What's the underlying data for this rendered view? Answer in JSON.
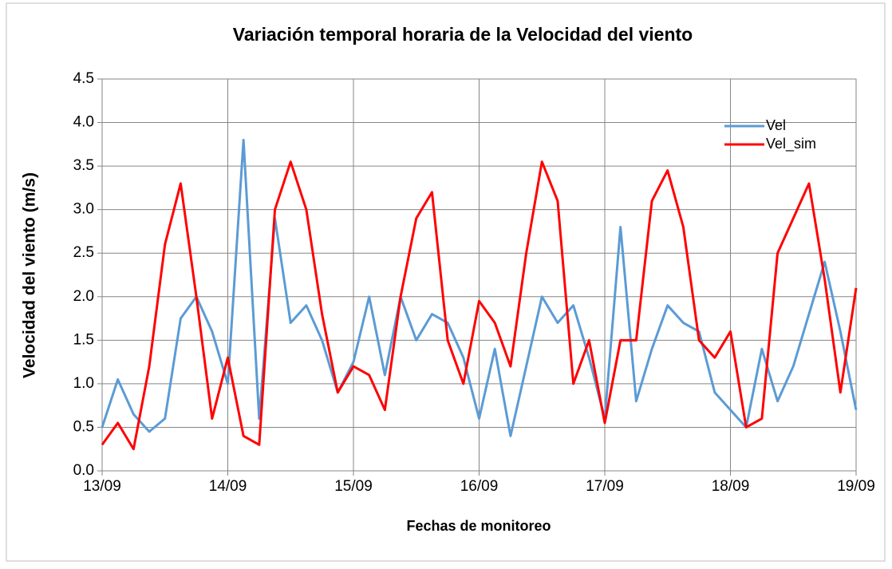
{
  "chart_data": {
    "type": "line",
    "title": "Variación temporal horaria de la Velocidad del viento",
    "x_label": "Fechas de monitoreo",
    "y_label": "Velocidad del viento (m/s)",
    "x": [
      0,
      3,
      6,
      9,
      12,
      15,
      18,
      21,
      24,
      27,
      30,
      33,
      36,
      39,
      42,
      45,
      48,
      51,
      54,
      57,
      60,
      63,
      66,
      69,
      72,
      75,
      78,
      81,
      84,
      87,
      90,
      93,
      96,
      99,
      102,
      105,
      108,
      111,
      114,
      117,
      120,
      123,
      126,
      129,
      132,
      135,
      138,
      141,
      144
    ],
    "series": [
      {
        "name": "Vel",
        "color": "#5b9bd5",
        "values": [
          0.5,
          1.05,
          0.65,
          0.45,
          0.6,
          1.75,
          2.0,
          1.6,
          1.0,
          3.8,
          0.6,
          2.9,
          1.7,
          1.9,
          1.5,
          0.9,
          1.25,
          2.0,
          1.1,
          2.0,
          1.5,
          1.8,
          1.7,
          1.3,
          0.6,
          1.4,
          0.4,
          1.2,
          2.0,
          1.7,
          1.9,
          1.3,
          0.6,
          2.8,
          0.8,
          1.4,
          1.9,
          1.7,
          1.6,
          0.9,
          0.7,
          0.5,
          1.4,
          0.8,
          1.2,
          1.8,
          2.4,
          1.6,
          0.7
        ]
      },
      {
        "name": "Vel_sim",
        "color": "#ff0000",
        "values": [
          0.3,
          0.55,
          0.25,
          1.2,
          2.6,
          3.3,
          2.0,
          0.6,
          1.3,
          0.4,
          0.3,
          3.0,
          3.55,
          3.0,
          1.8,
          0.9,
          1.2,
          1.1,
          0.7,
          2.0,
          2.9,
          3.2,
          1.5,
          1.0,
          1.95,
          1.7,
          1.2,
          2.5,
          3.55,
          3.1,
          1.0,
          1.5,
          0.55,
          1.5,
          1.5,
          3.1,
          3.45,
          2.8,
          1.5,
          1.3,
          1.6,
          0.5,
          0.6,
          2.5,
          2.9,
          3.3,
          2.2,
          0.9,
          2.1
        ]
      }
    ],
    "xlim": [
      0,
      144
    ],
    "xticks": [
      {
        "value": 0,
        "label": "13/09"
      },
      {
        "value": 24,
        "label": "14/09"
      },
      {
        "value": 48,
        "label": "15/09"
      },
      {
        "value": 72,
        "label": "16/09"
      },
      {
        "value": 96,
        "label": "17/09"
      },
      {
        "value": 120,
        "label": "18/09"
      },
      {
        "value": 144,
        "label": "19/09"
      }
    ],
    "ylim": [
      0,
      4.5
    ],
    "yticks": [
      {
        "value": 0,
        "label": "0.0"
      },
      {
        "value": 0.5,
        "label": "0.5"
      },
      {
        "value": 1,
        "label": "1.0"
      },
      {
        "value": 1.5,
        "label": "1.5"
      },
      {
        "value": 2,
        "label": "2.0"
      },
      {
        "value": 2.5,
        "label": "2.5"
      },
      {
        "value": 3,
        "label": "3.0"
      },
      {
        "value": 3.5,
        "label": "3.5"
      },
      {
        "value": 4,
        "label": "4.0"
      },
      {
        "value": 4.5,
        "label": "4.5"
      }
    ],
    "grid": true,
    "legend": "top-right"
  }
}
